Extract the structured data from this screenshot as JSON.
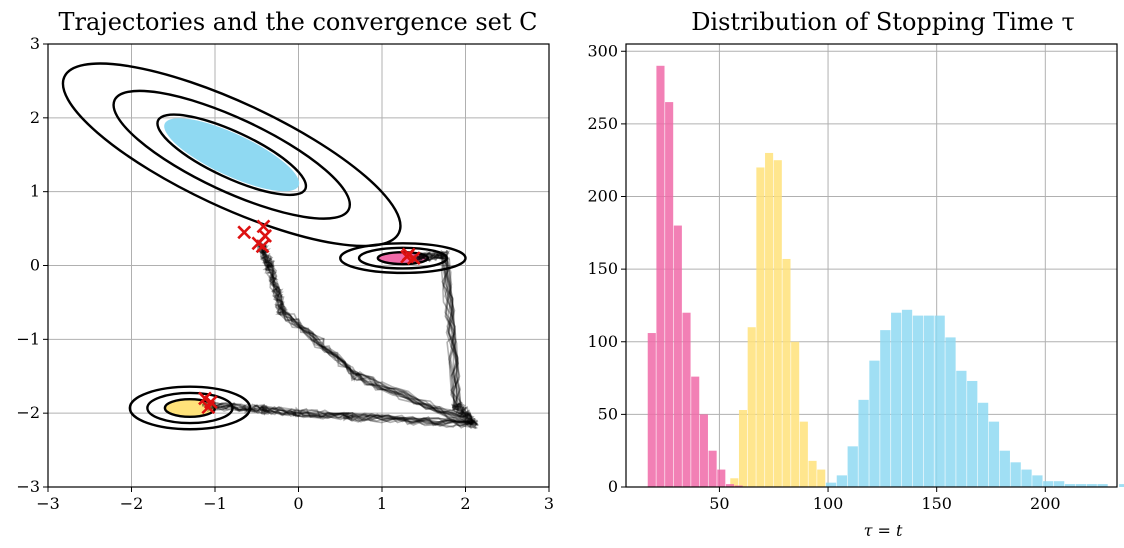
{
  "chart_data": [
    {
      "type": "scatter",
      "title": "Trajectories and the convergence set C",
      "xlabel": "",
      "ylabel": "",
      "xlim": [
        -3,
        3
      ],
      "ylim": [
        -3,
        3
      ],
      "xticks": [
        -3,
        -2,
        -1,
        0,
        1,
        2,
        3
      ],
      "yticks": [
        -3,
        -2,
        -1,
        0,
        1,
        2,
        3
      ],
      "xtick_labels": [
        "−3",
        "−2",
        "−1",
        "0",
        "1",
        "2",
        "3"
      ],
      "ytick_labels": [
        "−3",
        "−2",
        "−1",
        "0",
        "1",
        "2",
        "3"
      ],
      "grid": true,
      "colors": {
        "blue": "#8fd9f2",
        "yellow": "#ffe27a",
        "pink": "#f06aa8",
        "marker": "#dd1111",
        "trajectory": "#000000"
      },
      "convergence_sets": [
        {
          "color": "blue",
          "center": [
            -0.8,
            1.5
          ],
          "rx": 0.25,
          "ry": 1.0,
          "angle_deg": 65,
          "contour_scales": [
            1.1,
            1.75,
            2.5
          ]
        },
        {
          "color": "pink",
          "center": [
            1.25,
            0.1
          ],
          "rx": 0.3,
          "ry": 0.08,
          "angle_deg": 0,
          "contour_scales": [
            1.0,
            1.75,
            2.5
          ]
        },
        {
          "color": "yellow",
          "center": [
            -1.3,
            -1.93
          ],
          "rx": 0.3,
          "ry": 0.12,
          "angle_deg": 0,
          "contour_scales": [
            1.0,
            1.7,
            2.4
          ]
        }
      ],
      "markers": [
        [
          -0.65,
          0.45
        ],
        [
          -0.42,
          0.53
        ],
        [
          -0.4,
          0.4
        ],
        [
          -0.48,
          0.3
        ],
        [
          -0.43,
          0.26
        ],
        [
          1.3,
          0.12
        ],
        [
          1.38,
          0.1
        ],
        [
          1.32,
          0.15
        ],
        [
          -1.12,
          -1.8
        ],
        [
          -1.05,
          -1.85
        ],
        [
          -1.08,
          -1.92
        ]
      ]
    },
    {
      "type": "bar",
      "title": "Distribution of Stopping Time τ",
      "xlabel": "τ = t",
      "ylabel": "",
      "xlim": [
        7,
        233
      ],
      "ylim": [
        0,
        305
      ],
      "xticks": [
        50,
        100,
        150,
        200
      ],
      "yticks": [
        0,
        50,
        100,
        150,
        200,
        250,
        300
      ],
      "grid": true,
      "series": [
        {
          "color": "#8fd9f2",
          "bin_start": 99,
          "bin_width": 5,
          "values": [
            3,
            8,
            28,
            60,
            87,
            108,
            120,
            122,
            118,
            118,
            118,
            103,
            80,
            73,
            58,
            45,
            25,
            17,
            12,
            8,
            4,
            4,
            2,
            2,
            2,
            2,
            0,
            2
          ]
        },
        {
          "color": "#ffe27a",
          "bin_start": 55,
          "bin_width": 4,
          "values": [
            6,
            53,
            110,
            220,
            230,
            225,
            157,
            100,
            45,
            18,
            12
          ]
        },
        {
          "color": "#f06aa8",
          "bin_start": 17,
          "bin_width": 4,
          "values": [
            106,
            290,
            265,
            180,
            120,
            76,
            50,
            25,
            12,
            2,
            1
          ]
        }
      ]
    }
  ]
}
